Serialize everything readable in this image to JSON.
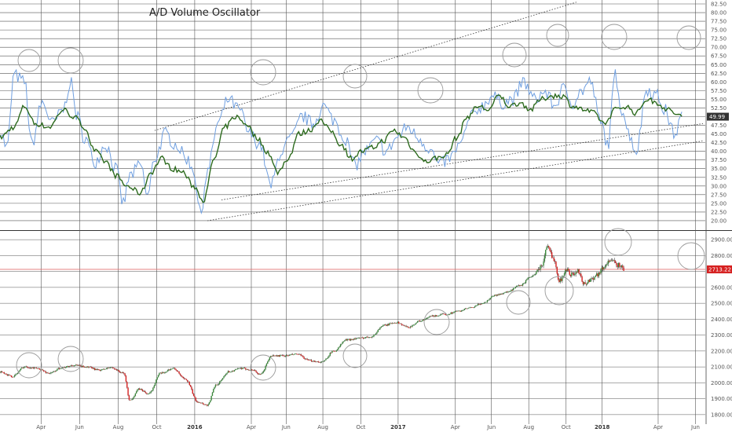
{
  "colors": {
    "grid": "#555555",
    "osc_raw": "#6f9fe0",
    "osc_smooth": "#2d6b1e",
    "candle": "#d62020",
    "candle_wick": "#222222",
    "price_line": "#e07070",
    "last_osc_bg": "#333333",
    "last_price_bg": "#d62020",
    "circle": "#999999",
    "channel": "#333333"
  },
  "chart_data": [
    {
      "type": "line",
      "title": "A/D Volume Oscillator",
      "ylim": [
        17.5,
        82.5
      ],
      "y_ticks": [
        "82.50",
        "80.00",
        "77.50",
        "75.00",
        "72.50",
        "70.00",
        "67.50",
        "65.00",
        "62.50",
        "60.00",
        "57.50",
        "55.00",
        "52.50",
        "50.00",
        "47.50",
        "45.00",
        "42.50",
        "40.00",
        "37.50",
        "35.00",
        "32.50",
        "30.00",
        "27.50",
        "25.00",
        "22.50",
        "20.00"
      ],
      "last_value": "49.99",
      "series": [
        {
          "role": "raw",
          "anchors": [
            [
              0,
              46
            ],
            [
              0.01,
              41
            ],
            [
              0.02,
              62
            ],
            [
              0.035,
              60
            ],
            [
              0.045,
              42
            ],
            [
              0.06,
              54
            ],
            [
              0.075,
              48
            ],
            [
              0.09,
              52
            ],
            [
              0.1,
              60
            ],
            [
              0.11,
              50
            ],
            [
              0.12,
              44
            ],
            [
              0.135,
              37
            ],
            [
              0.15,
              42
            ],
            [
              0.165,
              35
            ],
            [
              0.175,
              25
            ],
            [
              0.185,
              33
            ],
            [
              0.2,
              36
            ],
            [
              0.21,
              27
            ],
            [
              0.22,
              38
            ],
            [
              0.235,
              45
            ],
            [
              0.25,
              42
            ],
            [
              0.265,
              38
            ],
            [
              0.275,
              35
            ],
            [
              0.285,
              22
            ],
            [
              0.295,
              34
            ],
            [
              0.31,
              48
            ],
            [
              0.325,
              55
            ],
            [
              0.34,
              52
            ],
            [
              0.355,
              45
            ],
            [
              0.37,
              42
            ],
            [
              0.385,
              30
            ],
            [
              0.4,
              40
            ],
            [
              0.415,
              44
            ],
            [
              0.43,
              50
            ],
            [
              0.445,
              48
            ],
            [
              0.46,
              53
            ],
            [
              0.475,
              49
            ],
            [
              0.49,
              44
            ],
            [
              0.505,
              36
            ],
            [
              0.52,
              40
            ],
            [
              0.535,
              43
            ],
            [
              0.55,
              40
            ],
            [
              0.565,
              44
            ],
            [
              0.58,
              47
            ],
            [
              0.595,
              44
            ],
            [
              0.61,
              41
            ],
            [
              0.625,
              36
            ],
            [
              0.64,
              38
            ],
            [
              0.655,
              42
            ],
            [
              0.67,
              50
            ],
            [
              0.685,
              53
            ],
            [
              0.7,
              56
            ],
            [
              0.715,
              54
            ],
            [
              0.73,
              55
            ],
            [
              0.745,
              60
            ],
            [
              0.76,
              55
            ],
            [
              0.775,
              57
            ],
            [
              0.79,
              53
            ],
            [
              0.8,
              58
            ],
            [
              0.815,
              54
            ],
            [
              0.825,
              57
            ],
            [
              0.84,
              60
            ],
            [
              0.855,
              48
            ],
            [
              0.865,
              42
            ],
            [
              0.875,
              62
            ],
            [
              0.885,
              52
            ],
            [
              0.895,
              45
            ],
            [
              0.905,
              40
            ],
            [
              0.92,
              58
            ],
            [
              0.935,
              56
            ],
            [
              0.945,
              52
            ],
            [
              0.96,
              45
            ],
            [
              0.97,
              50
            ]
          ]
        },
        {
          "role": "smoothed",
          "anchors": [
            [
              0,
              44
            ],
            [
              0.02,
              47
            ],
            [
              0.035,
              53
            ],
            [
              0.05,
              48
            ],
            [
              0.07,
              47
            ],
            [
              0.09,
              52
            ],
            [
              0.105,
              50
            ],
            [
              0.12,
              47
            ],
            [
              0.135,
              40
            ],
            [
              0.15,
              37
            ],
            [
              0.165,
              33
            ],
            [
              0.18,
              30
            ],
            [
              0.2,
              28
            ],
            [
              0.215,
              34
            ],
            [
              0.23,
              38
            ],
            [
              0.245,
              35
            ],
            [
              0.26,
              34
            ],
            [
              0.275,
              30
            ],
            [
              0.29,
              26
            ],
            [
              0.305,
              38
            ],
            [
              0.32,
              47
            ],
            [
              0.335,
              50
            ],
            [
              0.35,
              48
            ],
            [
              0.365,
              44
            ],
            [
              0.38,
              40
            ],
            [
              0.395,
              34
            ],
            [
              0.41,
              38
            ],
            [
              0.425,
              45
            ],
            [
              0.44,
              46
            ],
            [
              0.455,
              49
            ],
            [
              0.47,
              46
            ],
            [
              0.485,
              42
            ],
            [
              0.5,
              38
            ],
            [
              0.515,
              40
            ],
            [
              0.53,
              41
            ],
            [
              0.545,
              43
            ],
            [
              0.56,
              46
            ],
            [
              0.575,
              44
            ],
            [
              0.59,
              40
            ],
            [
              0.605,
              37
            ],
            [
              0.62,
              38
            ],
            [
              0.635,
              39
            ],
            [
              0.65,
              44
            ],
            [
              0.665,
              50
            ],
            [
              0.68,
              53
            ],
            [
              0.695,
              52
            ],
            [
              0.71,
              56
            ],
            [
              0.725,
              53
            ],
            [
              0.74,
              54
            ],
            [
              0.755,
              52
            ],
            [
              0.77,
              55
            ],
            [
              0.785,
              56
            ],
            [
              0.8,
              56
            ],
            [
              0.815,
              53
            ],
            [
              0.83,
              52
            ],
            [
              0.845,
              51
            ],
            [
              0.86,
              48
            ],
            [
              0.875,
              52
            ],
            [
              0.89,
              53
            ],
            [
              0.905,
              51
            ],
            [
              0.92,
              55
            ],
            [
              0.935,
              54
            ],
            [
              0.95,
              52
            ],
            [
              0.96,
              51
            ],
            [
              0.97,
              50
            ]
          ]
        }
      ]
    },
    {
      "type": "candlestick",
      "ylim": [
        1750,
        2950
      ],
      "y_ticks": [
        "2900.00",
        "2800.00",
        "2700.00",
        "2600.00",
        "2500.00",
        "2400.00",
        "2300.00",
        "2200.00",
        "2100.00",
        "2000.00",
        "1900.00",
        "1800.00"
      ],
      "last_value": "2713.22",
      "x_ticks": [
        {
          "label": "Apr",
          "pos": 0.066,
          "year": false
        },
        {
          "label": "Jun",
          "pos": 0.128,
          "year": false
        },
        {
          "label": "Aug",
          "pos": 0.19,
          "year": false
        },
        {
          "label": "Oct",
          "pos": 0.252,
          "year": false
        },
        {
          "label": "2016",
          "pos": 0.313,
          "year": true
        },
        {
          "label": "Apr",
          "pos": 0.404,
          "year": false
        },
        {
          "label": "Jun",
          "pos": 0.46,
          "year": false
        },
        {
          "label": "Aug",
          "pos": 0.519,
          "year": false
        },
        {
          "label": "Oct",
          "pos": 0.58,
          "year": false
        },
        {
          "label": "2017",
          "pos": 0.64,
          "year": true
        },
        {
          "label": "Apr",
          "pos": 0.732,
          "year": false
        },
        {
          "label": "Jun",
          "pos": 0.79,
          "year": false
        },
        {
          "label": "Aug",
          "pos": 0.85,
          "year": false
        },
        {
          "label": "Oct",
          "pos": 0.91,
          "year": false
        },
        {
          "label": "2018",
          "pos": 0.968,
          "year": true
        },
        {
          "label": "Apr",
          "pos": 1.058,
          "year": false
        },
        {
          "label": "Jun",
          "pos": 1.118,
          "year": false
        }
      ],
      "anchors": [
        [
          0,
          2070
        ],
        [
          0.02,
          2040
        ],
        [
          0.04,
          2100
        ],
        [
          0.06,
          2090
        ],
        [
          0.08,
          2060
        ],
        [
          0.1,
          2095
        ],
        [
          0.12,
          2110
        ],
        [
          0.14,
          2100
        ],
        [
          0.16,
          2080
        ],
        [
          0.18,
          2095
        ],
        [
          0.2,
          2060
        ],
        [
          0.21,
          1890
        ],
        [
          0.225,
          1960
        ],
        [
          0.24,
          1930
        ],
        [
          0.26,
          2060
        ],
        [
          0.28,
          2090
        ],
        [
          0.3,
          2020
        ],
        [
          0.32,
          1880
        ],
        [
          0.335,
          1860
        ],
        [
          0.35,
          1990
        ],
        [
          0.37,
          2070
        ],
        [
          0.39,
          2090
        ],
        [
          0.41,
          2080
        ],
        [
          0.42,
          2050
        ],
        [
          0.44,
          2170
        ],
        [
          0.46,
          2170
        ],
        [
          0.48,
          2180
        ],
        [
          0.5,
          2140
        ],
        [
          0.52,
          2130
        ],
        [
          0.54,
          2200
        ],
        [
          0.56,
          2270
        ],
        [
          0.58,
          2280
        ],
        [
          0.6,
          2290
        ],
        [
          0.62,
          2360
        ],
        [
          0.64,
          2380
        ],
        [
          0.66,
          2350
        ],
        [
          0.68,
          2390
        ],
        [
          0.7,
          2420
        ],
        [
          0.72,
          2430
        ],
        [
          0.74,
          2450
        ],
        [
          0.76,
          2470
        ],
        [
          0.78,
          2500
        ],
        [
          0.8,
          2550
        ],
        [
          0.82,
          2570
        ],
        [
          0.84,
          2610
        ],
        [
          0.86,
          2670
        ],
        [
          0.875,
          2730
        ],
        [
          0.885,
          2850
        ],
        [
          0.895,
          2780
        ],
        [
          0.905,
          2640
        ],
        [
          0.915,
          2710
        ],
        [
          0.925,
          2680
        ],
        [
          0.935,
          2700
        ],
        [
          0.945,
          2620
        ],
        [
          0.955,
          2650
        ],
        [
          0.965,
          2680
        ],
        [
          0.975,
          2720
        ],
        [
          0.985,
          2770
        ],
        [
          1.0,
          2740
        ],
        [
          1.01,
          2713
        ]
      ]
    }
  ]
}
